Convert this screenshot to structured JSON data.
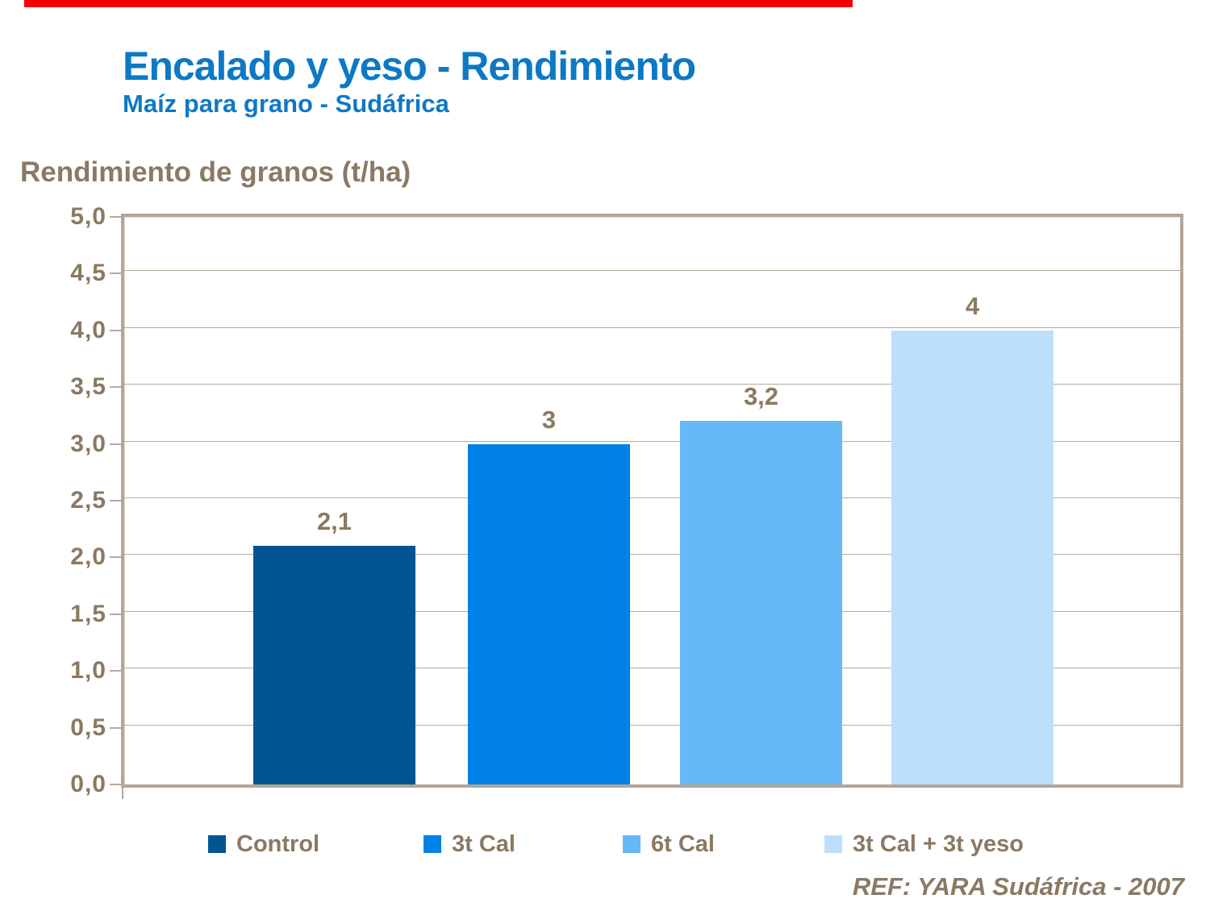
{
  "slide": {
    "title": "Encalado y yeso - Rendimiento",
    "subtitle": "Maíz para grano - Sudáfrica",
    "colors": {
      "title_blue": "#0D79C5",
      "text_brown": "#8A7963",
      "gridline": "#B9AA9C",
      "plot_border": "#B4A597",
      "accent_red": "#F40000",
      "background": "#FFFFFF"
    }
  },
  "chart_data": {
    "type": "bar",
    "title": "Encalado y yeso - Rendimiento",
    "subtitle": "Maíz para grano - Sudáfrica",
    "ylabel": "Rendimiento de granos (t/ha)",
    "xlabel": "",
    "categories": [
      "Control",
      "3t Cal",
      "6t Cal",
      "3t Cal + 3t yeso"
    ],
    "values": [
      2.1,
      3,
      3.2,
      4
    ],
    "value_labels": [
      "2,1",
      "3",
      "3,2",
      "4"
    ],
    "bar_colors": [
      "#005592",
      "#0082E6",
      "#64B9F6",
      "#BDDFFB"
    ],
    "ylim": [
      0,
      5
    ],
    "ytick_step": 0.5,
    "ytick_labels": [
      "0,0",
      "0,5",
      "1,0",
      "1,5",
      "2,0",
      "2,5",
      "3,0",
      "3,5",
      "4,0",
      "4,5",
      "5,0"
    ],
    "grid": true,
    "legend_position": "bottom",
    "source": "REF: YARA Sudáfrica - 2007"
  }
}
